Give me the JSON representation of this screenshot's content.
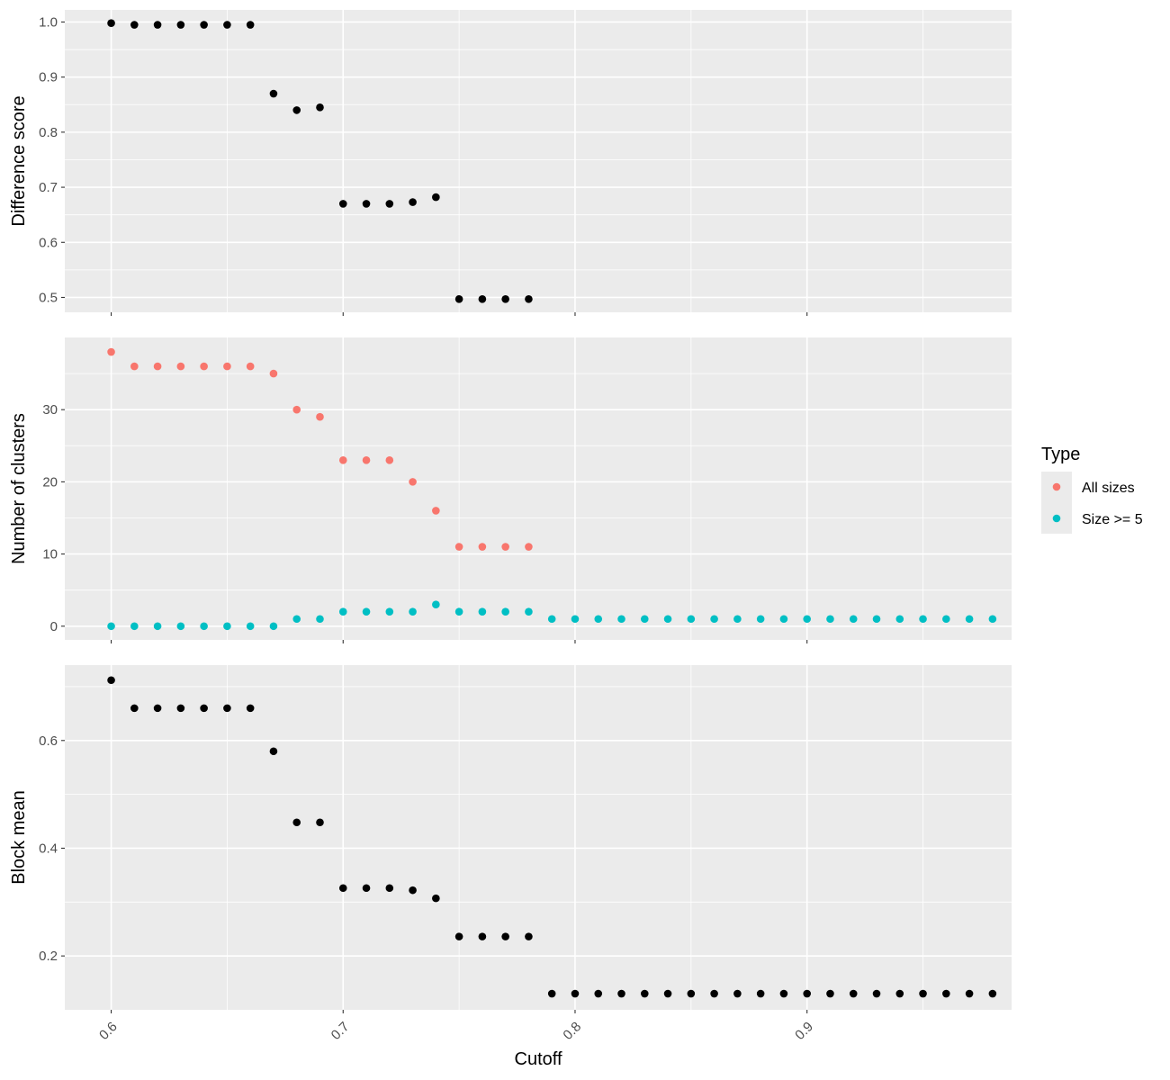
{
  "chart_data": {
    "type": "scatter",
    "shared_x": {
      "label": "Cutoff",
      "xlim": [
        0.58,
        0.9882
      ],
      "ticks": [
        0.6,
        0.7,
        0.8,
        0.9
      ],
      "tick_labels": [
        "0.6",
        "0.7",
        "0.8",
        "0.9"
      ],
      "minor_ticks": [
        0.65,
        0.75,
        0.85,
        0.95
      ]
    },
    "panels": [
      {
        "id": "difference",
        "ylabel": "Difference score",
        "ylim": [
          0.473,
          1.022
        ],
        "y_ticks": [
          0.5,
          0.6,
          0.7,
          0.8,
          0.9,
          1.0
        ],
        "y_tick_labels": [
          "0.5",
          "0.6",
          "0.7",
          "0.8",
          "0.9",
          "1.0"
        ],
        "y_minor": [
          0.55,
          0.65,
          0.75,
          0.85,
          0.95
        ],
        "series": [
          {
            "name": "Difference score",
            "color": "#000000",
            "x": [
              0.6,
              0.61,
              0.62,
              0.63,
              0.64,
              0.65,
              0.66,
              0.67,
              0.68,
              0.69,
              0.7,
              0.71,
              0.72,
              0.73,
              0.74,
              0.75,
              0.76,
              0.77,
              0.78
            ],
            "y": [
              0.998,
              0.995,
              0.995,
              0.995,
              0.995,
              0.995,
              0.995,
              0.87,
              0.84,
              0.845,
              0.67,
              0.67,
              0.67,
              0.673,
              0.682,
              0.497,
              0.497,
              0.497,
              0.497
            ]
          }
        ]
      },
      {
        "id": "clusters",
        "ylabel": "Number of clusters",
        "ylim": [
          -1.9,
          40.0
        ],
        "y_ticks": [
          0,
          10,
          20,
          30
        ],
        "y_tick_labels": [
          "0",
          "10",
          "20",
          "30"
        ],
        "y_minor": [
          5,
          15,
          25,
          35
        ],
        "series": [
          {
            "name": "All sizes",
            "color": "#F8766D",
            "x": [
              0.6,
              0.61,
              0.62,
              0.63,
              0.64,
              0.65,
              0.66,
              0.67,
              0.68,
              0.69,
              0.7,
              0.71,
              0.72,
              0.73,
              0.74,
              0.75,
              0.76,
              0.77,
              0.78
            ],
            "y": [
              38,
              36,
              36,
              36,
              36,
              36,
              36,
              35,
              30,
              29,
              23,
              23,
              23,
              20,
              16,
              11,
              11,
              11,
              11
            ]
          },
          {
            "name": "Size >= 5",
            "color": "#00BFC4",
            "x": [
              0.6,
              0.61,
              0.62,
              0.63,
              0.64,
              0.65,
              0.66,
              0.67,
              0.68,
              0.69,
              0.7,
              0.71,
              0.72,
              0.73,
              0.74,
              0.75,
              0.76,
              0.77,
              0.78,
              0.79,
              0.8,
              0.81,
              0.82,
              0.83,
              0.84,
              0.85,
              0.86,
              0.87,
              0.88,
              0.89,
              0.9,
              0.91,
              0.92,
              0.93,
              0.94,
              0.95,
              0.96,
              0.97,
              0.98
            ],
            "y": [
              0,
              0,
              0,
              0,
              0,
              0,
              0,
              0,
              1,
              1,
              2,
              2,
              2,
              2,
              3,
              2,
              2,
              2,
              2,
              1,
              1,
              1,
              1,
              1,
              1,
              1,
              1,
              1,
              1,
              1,
              1,
              1,
              1,
              1,
              1,
              1,
              1,
              1,
              1
            ]
          }
        ]
      },
      {
        "id": "block",
        "ylabel": "Block mean",
        "ylim": [
          0.1,
          0.74
        ],
        "y_ticks": [
          0.2,
          0.4,
          0.6
        ],
        "y_tick_labels": [
          "0.2",
          "0.4",
          "0.6"
        ],
        "y_minor": [
          0.3,
          0.5,
          0.7
        ],
        "series": [
          {
            "name": "Block mean",
            "color": "#000000",
            "x": [
              0.6,
              0.61,
              0.62,
              0.63,
              0.64,
              0.65,
              0.66,
              0.67,
              0.68,
              0.69,
              0.7,
              0.71,
              0.72,
              0.73,
              0.74,
              0.75,
              0.76,
              0.77,
              0.78,
              0.79,
              0.8,
              0.81,
              0.82,
              0.83,
              0.84,
              0.85,
              0.86,
              0.87,
              0.88,
              0.89,
              0.9,
              0.91,
              0.92,
              0.93,
              0.94,
              0.95,
              0.96,
              0.97,
              0.98
            ],
            "y": [
              0.712,
              0.66,
              0.66,
              0.66,
              0.66,
              0.66,
              0.66,
              0.58,
              0.448,
              0.448,
              0.326,
              0.326,
              0.326,
              0.322,
              0.307,
              0.236,
              0.236,
              0.236,
              0.236,
              0.13,
              0.13,
              0.13,
              0.13,
              0.13,
              0.13,
              0.13,
              0.13,
              0.13,
              0.13,
              0.13,
              0.13,
              0.13,
              0.13,
              0.13,
              0.13,
              0.13,
              0.13,
              0.13,
              0.13
            ]
          }
        ]
      }
    ],
    "legend": {
      "title": "Type",
      "position": "right",
      "entries": [
        {
          "label": "All sizes",
          "color": "#F8766D"
        },
        {
          "label": "Size >= 5",
          "color": "#00BFC4"
        }
      ]
    }
  }
}
